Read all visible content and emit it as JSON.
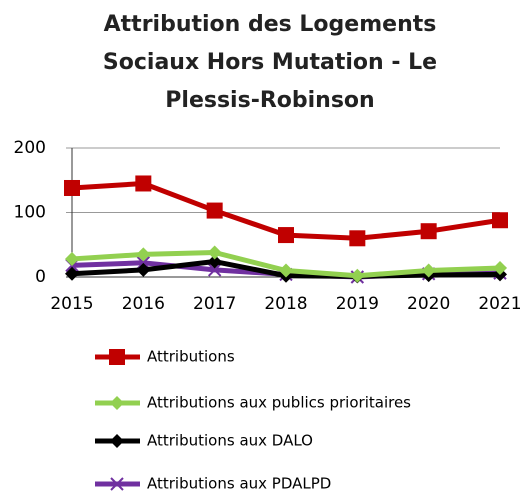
{
  "chart_data": {
    "type": "line",
    "title": "Attribution des Logements Sociaux Hors Mutation - Le Plessis-Robinson",
    "categories": [
      "2015",
      "2016",
      "2017",
      "2018",
      "2019",
      "2020",
      "2021"
    ],
    "series": [
      {
        "name": "Attributions",
        "color": "#c00000",
        "marker": "square",
        "values": [
          138,
          145,
          103,
          65,
          60,
          71,
          88
        ]
      },
      {
        "name": "Attributions aux publics prioritaires",
        "color": "#92d050",
        "marker": "diamond",
        "values": [
          28,
          35,
          38,
          10,
          2,
          10,
          14
        ]
      },
      {
        "name": "Attributions aux DALO",
        "color": "#000000",
        "marker": "diamond",
        "values": [
          5,
          11,
          24,
          2,
          1,
          3,
          4
        ]
      },
      {
        "name": "Attributions aux PDALPD",
        "color": "#7030a0",
        "marker": "x",
        "values": [
          18,
          22,
          11,
          4,
          0,
          5,
          6
        ]
      }
    ],
    "ylim": [
      0,
      200
    ],
    "yticks": [
      0,
      100,
      200
    ],
    "grid": true,
    "legend": "bottom"
  }
}
